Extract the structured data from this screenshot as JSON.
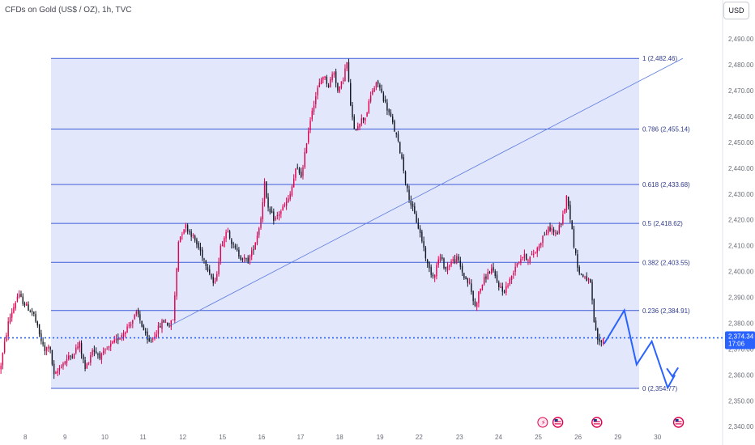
{
  "header": {
    "title": "CFDs on Gold (US$ / OZ), 1h, TVC",
    "currency_button": "USD"
  },
  "colors": {
    "up": "#e0004d",
    "down": "#131722",
    "fib_fill": "#e3e7fc",
    "fib_line": "#3c5bd6",
    "trend_line": "#5b7be0",
    "projection": "#2962ff",
    "last_price": "#2962ff"
  },
  "chart_data": {
    "type": "candlestick",
    "title": "CFDs on Gold (US$ / OZ), 1h, TVC",
    "ylim": [
      2336,
      2496
    ],
    "y_ticks": [
      2340,
      2350,
      2360,
      2370,
      2380,
      2390,
      2400,
      2410,
      2420,
      2430,
      2440,
      2450,
      2460,
      2470,
      2480,
      2490
    ],
    "y_tick_labels": [
      "2,340.00",
      "2,350.00",
      "2,360.00",
      "2,370.00",
      "2,380.00",
      "2,390.00",
      "2,400.00",
      "2,410.00",
      "2,420.00",
      "2,430.00",
      "2,440.00",
      "2,450.00",
      "2,460.00",
      "2,470.00",
      "2,480.00",
      "2,490.00"
    ],
    "x_ticks": [
      "8",
      "9",
      "10",
      "11",
      "12",
      "15",
      "16",
      "17",
      "18",
      "19",
      "22",
      "23",
      "24",
      "25",
      "26",
      "29",
      "30"
    ],
    "last_price": {
      "value": 2374.34,
      "label": "2,374.34",
      "countdown": "17:06"
    },
    "fibonacci": [
      {
        "ratio": "1",
        "price": 2482.46,
        "label": "1 (2,482.46)"
      },
      {
        "ratio": "0.786",
        "price": 2455.14,
        "label": "0.786 (2,455.14)"
      },
      {
        "ratio": "0.618",
        "price": 2433.68,
        "label": "0.618 (2,433.68)"
      },
      {
        "ratio": "0.5",
        "price": 2418.62,
        "label": "0.5 (2,418.62)"
      },
      {
        "ratio": "0.382",
        "price": 2403.55,
        "label": "0.382 (2,403.55)"
      },
      {
        "ratio": "0.236",
        "price": 2384.91,
        "label": "0.236 (2,384.91)"
      },
      {
        "ratio": "0",
        "price": 2354.77,
        "label": "0 (2,354.77)"
      }
    ],
    "trend_line": {
      "from": [
        0.235,
        2379
      ],
      "to": [
        0.945,
        2482.5
      ]
    },
    "projection_path": [
      [
        0.836,
        2372
      ],
      [
        0.864,
        2385
      ],
      [
        0.881,
        2364
      ],
      [
        0.902,
        2373
      ],
      [
        0.924,
        2355
      ],
      [
        0.934,
        2360
      ]
    ],
    "candle_count": 330,
    "path": [
      [
        0,
        2362
      ],
      [
        0.012,
        2381
      ],
      [
        0.025,
        2391
      ],
      [
        0.038,
        2386
      ],
      [
        0.046,
        2384
      ],
      [
        0.055,
        2375
      ],
      [
        0.062,
        2369
      ],
      [
        0.068,
        2372
      ],
      [
        0.075,
        2359
      ],
      [
        0.085,
        2364
      ],
      [
        0.1,
        2368
      ],
      [
        0.11,
        2372
      ],
      [
        0.118,
        2362
      ],
      [
        0.128,
        2370
      ],
      [
        0.14,
        2367
      ],
      [
        0.152,
        2371
      ],
      [
        0.163,
        2374
      ],
      [
        0.175,
        2378
      ],
      [
        0.19,
        2384
      ],
      [
        0.198,
        2378
      ],
      [
        0.205,
        2372
      ],
      [
        0.215,
        2376
      ],
      [
        0.226,
        2381
      ],
      [
        0.235,
        2379
      ],
      [
        0.24,
        2382
      ],
      [
        0.247,
        2412
      ],
      [
        0.256,
        2418
      ],
      [
        0.266,
        2414
      ],
      [
        0.277,
        2408
      ],
      [
        0.29,
        2400
      ],
      [
        0.297,
        2394
      ],
      [
        0.305,
        2409
      ],
      [
        0.315,
        2417
      ],
      [
        0.322,
        2410
      ],
      [
        0.332,
        2406
      ],
      [
        0.342,
        2404
      ],
      [
        0.348,
        2407
      ],
      [
        0.355,
        2413
      ],
      [
        0.362,
        2422
      ],
      [
        0.366,
        2436
      ],
      [
        0.37,
        2424
      ],
      [
        0.38,
        2420
      ],
      [
        0.39,
        2424
      ],
      [
        0.4,
        2428
      ],
      [
        0.41,
        2440
      ],
      [
        0.418,
        2437
      ],
      [
        0.425,
        2452
      ],
      [
        0.432,
        2463
      ],
      [
        0.44,
        2471
      ],
      [
        0.447,
        2476
      ],
      [
        0.455,
        2472
      ],
      [
        0.462,
        2478
      ],
      [
        0.468,
        2469
      ],
      [
        0.474,
        2474
      ],
      [
        0.48,
        2481
      ],
      [
        0.485,
        2465
      ],
      [
        0.49,
        2454
      ],
      [
        0.497,
        2458
      ],
      [
        0.506,
        2460
      ],
      [
        0.515,
        2470
      ],
      [
        0.523,
        2473
      ],
      [
        0.532,
        2466
      ],
      [
        0.54,
        2460
      ],
      [
        0.548,
        2453
      ],
      [
        0.556,
        2444
      ],
      [
        0.563,
        2432
      ],
      [
        0.57,
        2425
      ],
      [
        0.578,
        2418
      ],
      [
        0.585,
        2411
      ],
      [
        0.592,
        2402
      ],
      [
        0.6,
        2398
      ],
      [
        0.608,
        2406
      ],
      [
        0.617,
        2401
      ],
      [
        0.625,
        2404
      ],
      [
        0.633,
        2405
      ],
      [
        0.642,
        2398
      ],
      [
        0.65,
        2395
      ],
      [
        0.657,
        2386
      ],
      [
        0.664,
        2393
      ],
      [
        0.672,
        2398
      ],
      [
        0.68,
        2401
      ],
      [
        0.688,
        2396
      ],
      [
        0.696,
        2392
      ],
      [
        0.705,
        2396
      ],
      [
        0.714,
        2403
      ],
      [
        0.723,
        2406
      ],
      [
        0.732,
        2405
      ],
      [
        0.742,
        2408
      ],
      [
        0.752,
        2414
      ],
      [
        0.762,
        2417
      ],
      [
        0.77,
        2414
      ],
      [
        0.778,
        2420
      ],
      [
        0.785,
        2430
      ],
      [
        0.79,
        2419
      ],
      [
        0.796,
        2407
      ],
      [
        0.802,
        2399
      ],
      [
        0.81,
        2398
      ],
      [
        0.817,
        2395
      ],
      [
        0.823,
        2378
      ],
      [
        0.829,
        2372
      ],
      [
        0.836,
        2374.34
      ]
    ]
  }
}
